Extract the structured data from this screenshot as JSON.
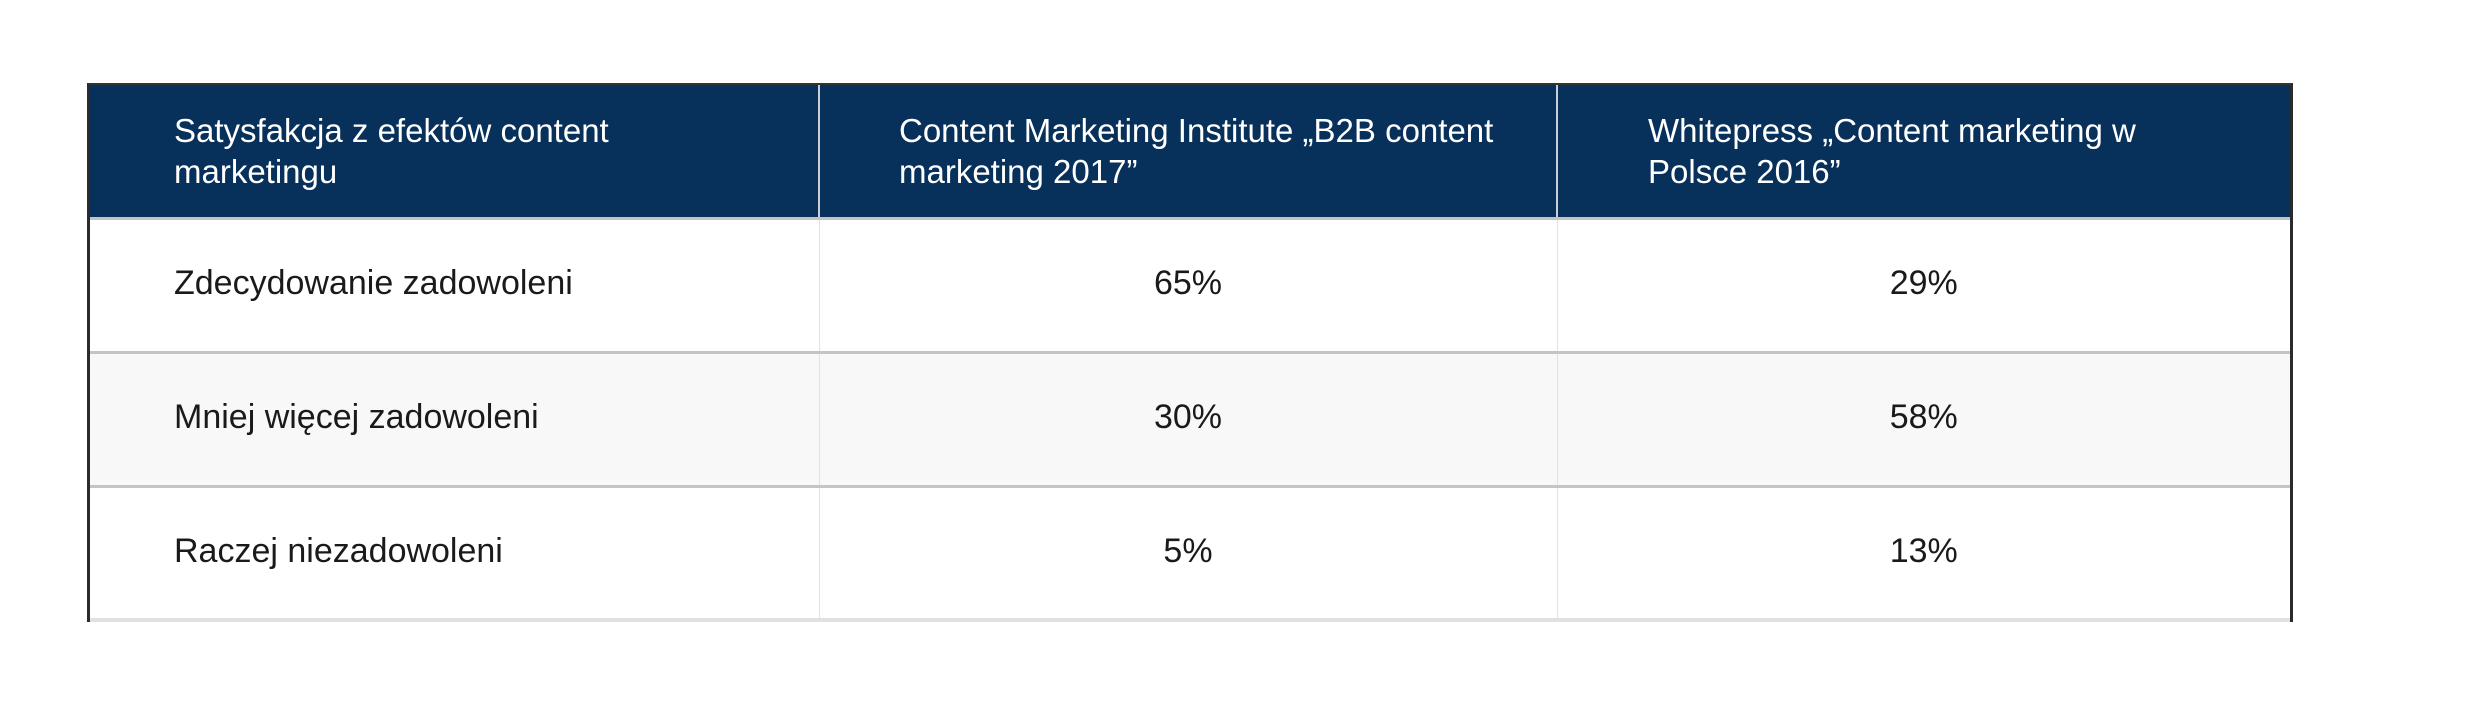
{
  "table": {
    "headers": [
      "Satysfakcja z efektów content marketingu",
      "Content Marketing Institute „B2B content marketing 2017”",
      "Whitepress „Content marketing w Polsce 2016”"
    ],
    "rows": [
      {
        "label": "Zdecydowanie zadowoleni",
        "values": [
          "65%",
          "29%"
        ]
      },
      {
        "label": "Mniej więcej zadowoleni",
        "values": [
          "30%",
          "58%"
        ]
      },
      {
        "label": "Raczej niezadowoleni",
        "values": [
          "5%",
          "13%"
        ]
      }
    ]
  },
  "colors": {
    "header_background": "#07305a",
    "header_text": "#ffffff",
    "body_text": "#1a1a1a",
    "alt_row_background": "#f8f8f8",
    "row_divider": "#c4c4c4",
    "outer_border": "#2b2b2b"
  }
}
